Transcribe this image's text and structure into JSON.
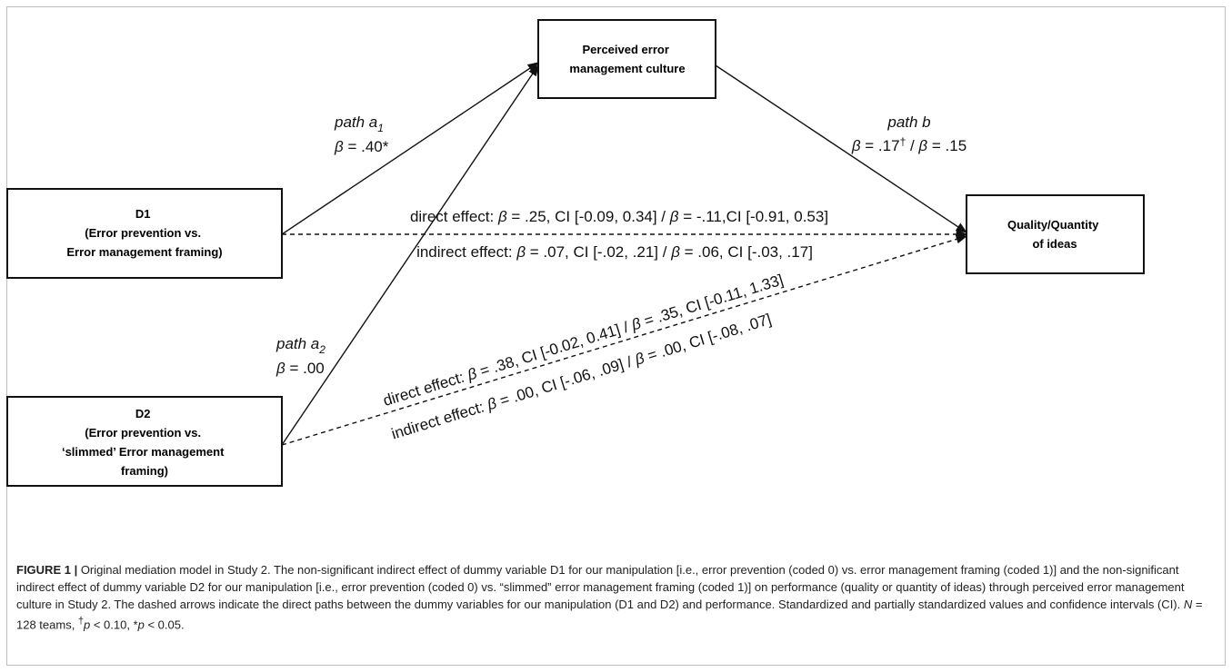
{
  "boxes": {
    "mediator": [
      "Perceived error",
      "management culture"
    ],
    "outcome": [
      "Quality/Quantity",
      "of ideas"
    ],
    "d1": [
      "D1",
      "(Error prevention vs.",
      "Error management framing)"
    ],
    "d2": [
      "D2",
      "(Error prevention vs.",
      "‘slimmed’ Error management",
      "framing)"
    ]
  },
  "labels": {
    "path_a1": "path a",
    "path_a1_sub": "1",
    "beta_a1": ".40*",
    "path_a2": "path a",
    "path_a2_sub": "2",
    "beta_a2": ".00",
    "path_b": "path b",
    "beta_b_part1": ".17",
    "beta_b_dagger": "†",
    "beta_b_part2": ".15",
    "beta_symbol": "β",
    "d1_direct_prefix": "direct effect: ",
    "d1_direct_mid": " = .25, CI [-0.09, 0.34] / ",
    "d1_direct_end": " = -.11,CI [-0.91, 0.53]",
    "d1_indirect_prefix": "indirect effect: ",
    "d1_indirect_mid": " = .07, CI [-.02, .21] / ",
    "d1_indirect_end": " = .06, CI [-.03, .17]",
    "d2_direct_prefix": "direct effect: ",
    "d2_direct_mid": " = .38, CI [-0.02, 0.41] / ",
    "d2_direct_end": " = .35, CI [-0.11, 1.33]",
    "d2_indirect_prefix": "indirect effect: ",
    "d2_indirect_mid": " = .00, CI [-.06, .09] / ",
    "d2_indirect_end": " = .00, CI [-.08, .07]"
  },
  "caption": {
    "title": "FIGURE 1 |",
    "text": " Original mediation  model in Study 2. The non-significant indirect effect of dummy variable D1 for our manipulation [i.e., error prevention (coded 0) vs. error management framing (coded 1)] and the non-significant indirect effect of dummy variable D2 for our manipulation [i.e., error prevention (coded 0) vs. “slimmed” error management framing (coded 1)] on performance (quality or quantity of ideas) through perceived error management culture in Study 2. The dashed arrows indicate the direct paths between the dummy variables for our manipulation (D1 and D2) and performance. Standardized and partially standardized values and confidence intervals (CI). ",
    "n_italic": "N",
    "n_text": " = 128 teams, ",
    "dagger": "†",
    "p1_italic": "p",
    "p1_text": " < 0.10, *",
    "p2_italic": "p",
    "p2_text": " < 0.05."
  }
}
